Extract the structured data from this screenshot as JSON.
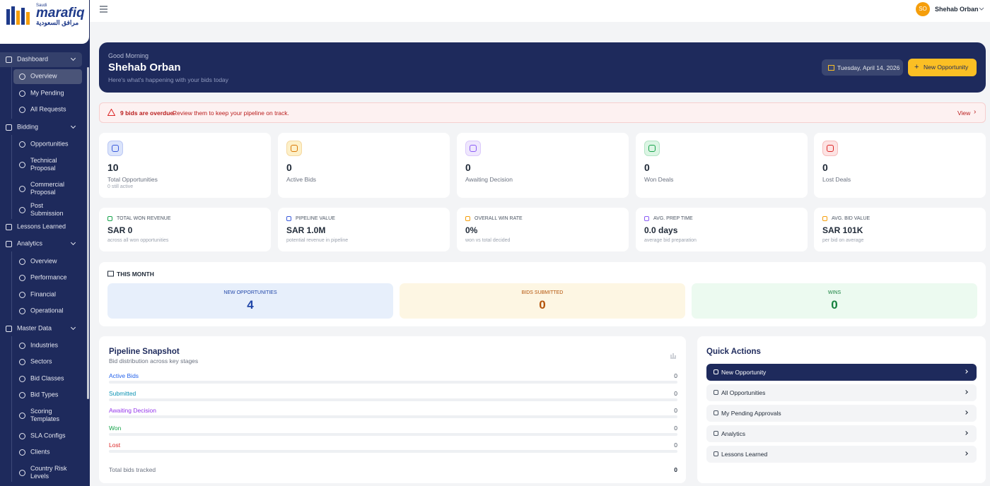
{
  "brand": {
    "tag": "Saudi",
    "name": "marafiq",
    "arabic": "مرافق السعودية"
  },
  "sidebar": {
    "groups": [
      {
        "label": "Dashboard",
        "children": [
          "Overview",
          "My Pending",
          "All Requests"
        ]
      },
      {
        "label": "Bidding",
        "children": [
          "Opportunities",
          "Technical Proposal",
          "Commercial Proposal",
          "Post Submission"
        ]
      },
      {
        "label": "Lessons Learned",
        "children": []
      },
      {
        "label": "Analytics",
        "children": [
          "Overview",
          "Performance",
          "Financial",
          "Operational"
        ]
      },
      {
        "label": "Master Data",
        "children": [
          "Industries",
          "Sectors",
          "Bid Classes",
          "Bid Types",
          "Scoring Templates",
          "SLA Configs",
          "Clients",
          "Country Risk Levels"
        ]
      }
    ]
  },
  "topbar": {
    "avatar": "SO",
    "user": "Shehab Orban"
  },
  "hero": {
    "greeting": "Good Morning",
    "name": "Shehab Orban",
    "subtitle": "Here's what's happening with your bids today",
    "date": "Tuesday, April 14, 2026",
    "button": "New Opportunity"
  },
  "alert": {
    "strong": "9 bids are overdue.",
    "text": "Review them to keep your pipeline on track.",
    "link": "View"
  },
  "stats": [
    {
      "value": 10,
      "label": "Total Opportunities",
      "sub": "0 still active"
    },
    {
      "value": 0,
      "label": "Active Bids"
    },
    {
      "value": 0,
      "label": "Awaiting Decision"
    },
    {
      "value": 0,
      "label": "Won Deals"
    },
    {
      "value": 0,
      "label": "Lost Deals"
    }
  ],
  "kpis": [
    {
      "label": "TOTAL WON REVENUE",
      "value": "SAR 0",
      "sub": "across all won opportunities"
    },
    {
      "label": "PIPELINE VALUE",
      "value": "SAR 1.0M",
      "sub": "potential revenue in pipeline"
    },
    {
      "label": "OVERALL WIN RATE",
      "value": "0%",
      "sub": "won vs total decided"
    },
    {
      "label": "AVG. PREP TIME",
      "value": "0.0 days",
      "sub": "average bid preparation"
    },
    {
      "label": "AVG. BID VALUE",
      "value": "SAR 101K",
      "sub": "per bid on average"
    }
  ],
  "this_month": {
    "title": "THIS MONTH",
    "items": [
      {
        "label": "NEW OPPORTUNITIES",
        "value": 4
      },
      {
        "label": "BIDS SUBMITTED",
        "value": 0
      },
      {
        "label": "WINS",
        "value": 0
      }
    ]
  },
  "pipeline": {
    "title": "Pipeline Snapshot",
    "subtitle": "Bid distribution across key stages",
    "rows": [
      {
        "label": "Active Bids",
        "value": 0
      },
      {
        "label": "Submitted",
        "value": 0
      },
      {
        "label": "Awaiting Decision",
        "value": 0
      },
      {
        "label": "Won",
        "value": 0
      },
      {
        "label": "Lost",
        "value": 0
      }
    ],
    "total_label": "Total bids tracked",
    "total": 0
  },
  "quick_actions": {
    "title": "Quick Actions",
    "items": [
      "New Opportunity",
      "All Opportunities",
      "My Pending Approvals",
      "Analytics",
      "Lessons Learned"
    ]
  }
}
